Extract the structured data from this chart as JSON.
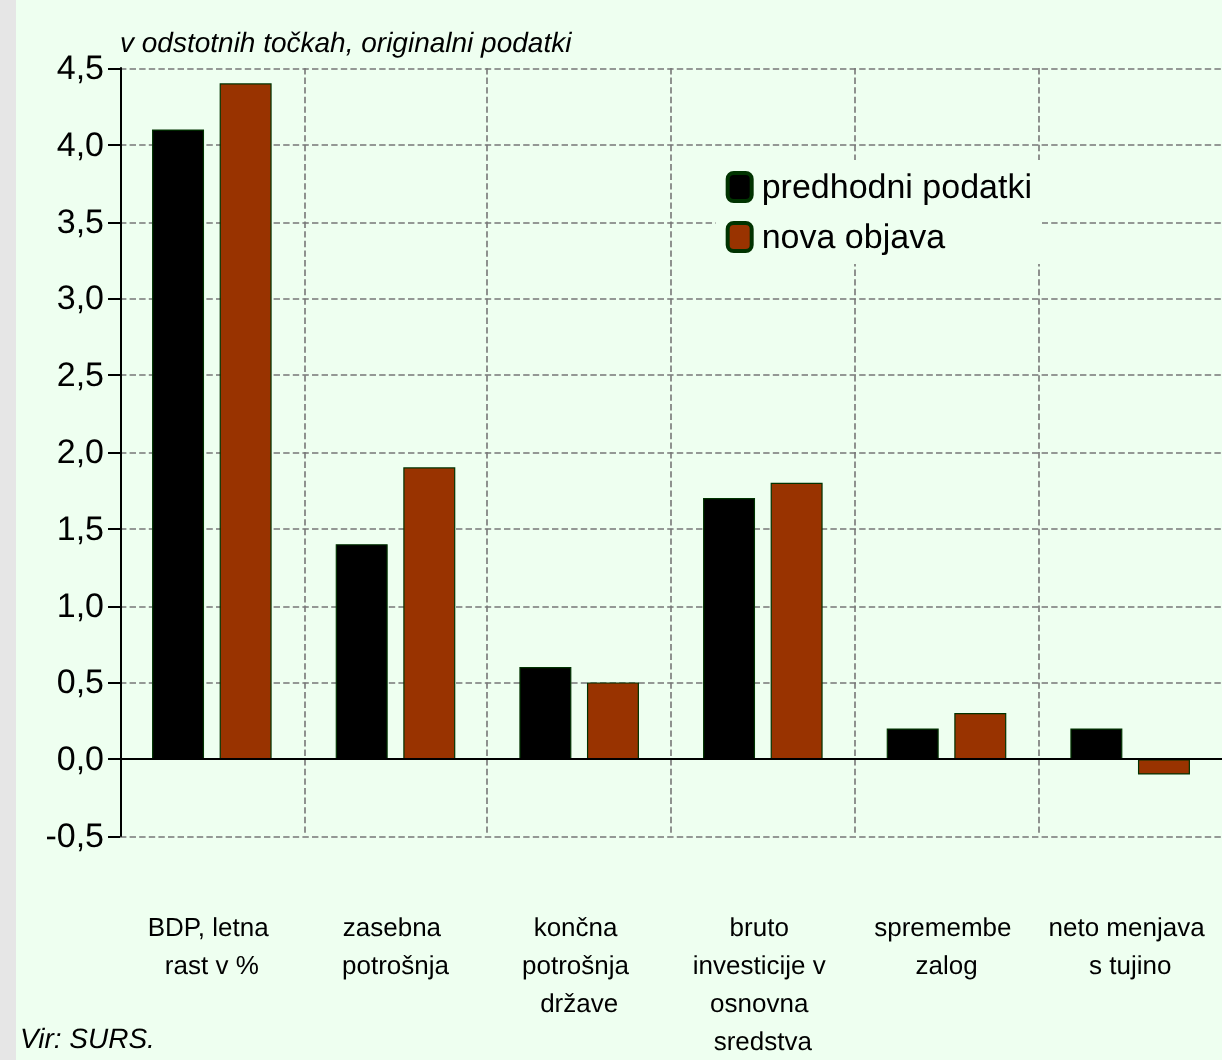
{
  "chart_data": {
    "type": "bar",
    "ylabel": "v odstotnih točkah, originalni podatki",
    "categories": [
      "BDP, letna rast v %",
      "zasebna potrošnja",
      "končna potrošnja države",
      "bruto investicije v osnovna sredstva",
      "spremembe zalog",
      "neto menjava s tujino"
    ],
    "series": [
      {
        "name": "predhodni podatki",
        "color": "#000000",
        "values": [
          4.1,
          1.4,
          0.6,
          1.7,
          0.2,
          0.2
        ]
      },
      {
        "name": "nova objava",
        "color": "#993300",
        "values": [
          4.4,
          1.9,
          0.5,
          1.8,
          0.3,
          -0.1
        ]
      }
    ],
    "ylim": [
      -0.5,
      4.5
    ],
    "yticks": [
      {
        "value": -0.5,
        "label": "-0,5"
      },
      {
        "value": 0,
        "label": "0,0"
      },
      {
        "value": 0.5,
        "label": "0,5"
      },
      {
        "value": 1,
        "label": "1,0"
      },
      {
        "value": 1.5,
        "label": "1,5"
      },
      {
        "value": 2,
        "label": "2,0"
      },
      {
        "value": 2.5,
        "label": "2,5"
      },
      {
        "value": 3,
        "label": "3,0"
      },
      {
        "value": 3.5,
        "label": "3,5"
      },
      {
        "value": 4,
        "label": "4,0"
      },
      {
        "value": 4.5,
        "label": "4,5"
      }
    ],
    "grid": true,
    "legend": "top right",
    "annotations": [
      "Vir: SURS."
    ]
  }
}
